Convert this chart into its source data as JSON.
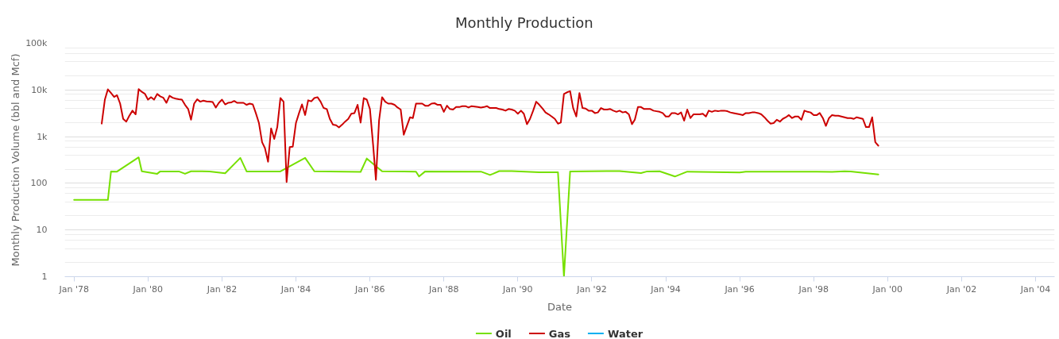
{
  "chart_data": {
    "type": "line",
    "title": "Monthly Production",
    "xlabel": "Date",
    "ylabel": "Monthly Production Volume (bbl and Mcf)",
    "log": true,
    "grid": "y",
    "legend": "bottom",
    "xlim": [
      "1977-10-01",
      "2004-07-07"
    ],
    "xticks": [
      {
        "value": "1978-01",
        "label": "Jan '78"
      },
      {
        "value": "1980-01",
        "label": "Jan '80"
      },
      {
        "value": "1982-01",
        "label": "Jan '82"
      },
      {
        "value": "1984-01",
        "label": "Jan '84"
      },
      {
        "value": "1986-01",
        "label": "Jan '86"
      },
      {
        "value": "1988-01",
        "label": "Jan '88"
      },
      {
        "value": "1990-01",
        "label": "Jan '90"
      },
      {
        "value": "1992-01",
        "label": "Jan '92"
      },
      {
        "value": "1994-01",
        "label": "Jan '94"
      },
      {
        "value": "1996-01",
        "label": "Jan '96"
      },
      {
        "value": "1998-01",
        "label": "Jan '98"
      },
      {
        "value": "2000-01",
        "label": "Jan '00"
      },
      {
        "value": "2002-01",
        "label": "Jan '02"
      },
      {
        "value": "2004-01",
        "label": "Jan '04"
      }
    ],
    "ylim": [
      1,
      100000
    ],
    "yticks": [
      1,
      {
        "value": 2,
        "label": null
      },
      {
        "value": 4,
        "label": null
      },
      {
        "value": 6,
        "label": null
      },
      {
        "value": 8,
        "label": null
      },
      10,
      {
        "value": 20,
        "label": null
      },
      {
        "value": 40,
        "label": null
      },
      {
        "value": 60,
        "label": null
      },
      {
        "value": 80,
        "label": null
      },
      100,
      {
        "value": 200,
        "label": null
      },
      {
        "value": 400,
        "label": null
      },
      {
        "value": 600,
        "label": null
      },
      {
        "value": 800,
        "label": null
      },
      {
        "value": 1000,
        "label": "1k"
      },
      {
        "value": 2000,
        "label": null
      },
      {
        "value": 4000,
        "label": null
      },
      {
        "value": 6000,
        "label": null
      },
      {
        "value": 8000,
        "label": null
      },
      {
        "value": 10000,
        "label": "10k"
      },
      {
        "value": 20000,
        "label": null
      },
      {
        "value": 40000,
        "label": null
      },
      {
        "value": 60000,
        "label": null
      },
      {
        "value": 80000,
        "label": null
      },
      {
        "value": 100000,
        "label": "100k"
      }
    ],
    "series": [
      {
        "name": "Oil",
        "color": "#76e000",
        "x": [
          "1978-01",
          "1978-12",
          "1979-01",
          "1979-03",
          "1979-10",
          "1979-11",
          "1980-04",
          "1980-05",
          "1980-11",
          "1981-01",
          "1981-03",
          "1981-09",
          "1982-02",
          "1982-07",
          "1982-09",
          "1983-08",
          "1984-04",
          "1984-07",
          "1985-10",
          "1985-12",
          "1986-05",
          "1987-04",
          "1987-05",
          "1987-07",
          "1989-01",
          "1989-04",
          "1989-05",
          "1989-07",
          "1989-11",
          "1990-08",
          "1991-02",
          "1991-04",
          "1991-06",
          "1992-10",
          "1993-05",
          "1993-07",
          "1993-11",
          "1994-04",
          "1994-08",
          "1996-01",
          "1996-03",
          "1998-02",
          "1998-07",
          "1998-11",
          "1999-01",
          "1999-10"
        ],
        "values": [
          44,
          44,
          180,
          178,
          360,
          181,
          160,
          180,
          180,
          160,
          181,
          180,
          164,
          350,
          180,
          180,
          350,
          181,
          176,
          340,
          181,
          178,
          140,
          180,
          178,
          151,
          160,
          183,
          183,
          173,
          172,
          1,
          180,
          183,
          166,
          180,
          181,
          140,
          178,
          170,
          178,
          178,
          175,
          181,
          180,
          155
        ]
      },
      {
        "name": "Gas",
        "color": "#cc0000",
        "x": [
          "1978-10",
          "1978-11",
          "1978-12",
          "1979-01",
          "1979-02",
          "1979-03",
          "1979-04",
          "1979-05",
          "1979-06",
          "1979-07",
          "1979-08",
          "1979-09",
          "1979-10",
          "1979-11",
          "1979-12",
          "1980-01",
          "1980-02",
          "1980-03",
          "1980-04",
          "1980-05",
          "1980-06",
          "1980-07",
          "1980-08",
          "1980-09",
          "1980-10",
          "1980-11",
          "1980-12",
          "1981-01",
          "1981-02",
          "1981-03",
          "1981-04",
          "1981-05",
          "1981-06",
          "1981-07",
          "1981-08",
          "1981-09",
          "1981-10",
          "1981-11",
          "1981-12",
          "1982-01",
          "1982-02",
          "1982-03",
          "1982-04",
          "1982-05",
          "1982-06",
          "1982-07",
          "1982-08",
          "1982-09",
          "1982-10",
          "1982-11",
          "1982-12",
          "1983-01",
          "1983-02",
          "1983-03",
          "1983-04",
          "1983-05",
          "1983-06",
          "1983-07",
          "1983-08",
          "1983-09",
          "1983-10",
          "1983-11",
          "1983-12",
          "1984-01",
          "1984-02",
          "1984-03",
          "1984-04",
          "1984-05",
          "1984-06",
          "1984-07",
          "1984-08",
          "1984-09",
          "1984-10",
          "1984-11",
          "1984-12",
          "1985-01",
          "1985-02",
          "1985-03",
          "1985-04",
          "1985-05",
          "1985-06",
          "1985-07",
          "1985-08",
          "1985-09",
          "1985-10",
          "1985-11",
          "1985-12",
          "1986-01",
          "1986-02",
          "1986-03",
          "1986-04",
          "1986-05",
          "1986-06",
          "1986-07",
          "1986-08",
          "1986-09",
          "1986-10",
          "1986-11",
          "1986-12",
          "1987-01",
          "1987-02",
          "1987-03",
          "1987-04",
          "1987-05",
          "1987-06",
          "1987-07",
          "1987-08",
          "1987-09",
          "1987-10",
          "1987-11",
          "1987-12",
          "1988-01",
          "1988-02",
          "1988-03",
          "1988-04",
          "1988-05",
          "1988-06",
          "1988-07",
          "1988-08",
          "1988-09",
          "1988-10",
          "1988-11",
          "1988-12",
          "1989-01",
          "1989-02",
          "1989-03",
          "1989-04",
          "1989-05",
          "1989-06",
          "1989-07",
          "1989-08",
          "1989-09",
          "1989-10",
          "1989-11",
          "1989-12",
          "1990-01",
          "1990-02",
          "1990-03",
          "1990-04",
          "1990-05",
          "1990-06",
          "1990-07",
          "1990-08",
          "1990-09",
          "1990-10",
          "1990-11",
          "1990-12",
          "1991-01",
          "1991-02",
          "1991-03",
          "1991-04",
          "1991-05",
          "1991-06",
          "1991-07",
          "1991-08",
          "1991-09",
          "1991-10",
          "1991-11",
          "1991-12",
          "1992-01",
          "1992-02",
          "1992-03",
          "1992-04",
          "1992-05",
          "1992-06",
          "1992-07",
          "1992-08",
          "1992-09",
          "1992-10",
          "1992-11",
          "1992-12",
          "1993-01",
          "1993-02",
          "1993-03",
          "1993-04",
          "1993-05",
          "1993-06",
          "1993-07",
          "1993-08",
          "1993-09",
          "1993-10",
          "1993-11",
          "1993-12",
          "1994-01",
          "1994-02",
          "1994-03",
          "1994-04",
          "1994-05",
          "1994-06",
          "1994-07",
          "1994-08",
          "1994-09",
          "1994-10",
          "1994-11",
          "1994-12",
          "1995-01",
          "1995-02",
          "1995-03",
          "1995-04",
          "1995-05",
          "1995-06",
          "1995-07",
          "1995-08",
          "1995-09",
          "1995-10",
          "1995-11",
          "1995-12",
          "1996-01",
          "1996-02",
          "1996-03",
          "1996-04",
          "1996-05",
          "1996-06",
          "1996-07",
          "1996-08",
          "1996-09",
          "1996-10",
          "1996-11",
          "1996-12",
          "1997-01",
          "1997-02",
          "1997-03",
          "1997-04",
          "1997-05",
          "1997-06",
          "1997-07",
          "1997-08",
          "1997-09",
          "1997-10",
          "1997-11",
          "1997-12",
          "1998-01",
          "1998-02",
          "1998-03",
          "1998-04",
          "1998-05",
          "1998-06",
          "1998-07",
          "1998-08",
          "1998-09",
          "1998-10",
          "1998-11",
          "1998-12",
          "1999-01",
          "1999-02",
          "1999-03",
          "1999-04",
          "1999-05",
          "1999-06",
          "1999-07",
          "1999-08",
          "1999-09",
          "1999-10"
        ],
        "values": [
          1900,
          6200,
          10300,
          8600,
          7100,
          7700,
          5100,
          2400,
          2100,
          2800,
          3600,
          3000,
          10400,
          9100,
          8300,
          6200,
          7000,
          6200,
          8200,
          7300,
          6800,
          5300,
          7500,
          6800,
          6500,
          6300,
          6200,
          4800,
          3900,
          2300,
          5100,
          6300,
          5600,
          5900,
          5700,
          5600,
          5500,
          4200,
          5300,
          6200,
          4900,
          5300,
          5400,
          5800,
          5300,
          5300,
          5300,
          4800,
          5100,
          4900,
          3200,
          1950,
          760,
          570,
          290,
          1500,
          890,
          1600,
          6700,
          5600,
          107,
          600,
          610,
          1950,
          3200,
          4900,
          2900,
          6000,
          5700,
          6700,
          7000,
          5600,
          4100,
          3900,
          2400,
          1800,
          1750,
          1570,
          1800,
          2100,
          2400,
          3100,
          3200,
          4800,
          2000,
          6700,
          6200,
          3900,
          680,
          119,
          2200,
          7000,
          5600,
          5100,
          5100,
          4800,
          4200,
          3800,
          1100,
          1700,
          2600,
          2500,
          5100,
          5100,
          5100,
          4600,
          4600,
          5100,
          5200,
          4800,
          4800,
          3400,
          4600,
          3900,
          3800,
          4300,
          4300,
          4500,
          4500,
          4200,
          4500,
          4400,
          4300,
          4200,
          4300,
          4500,
          4100,
          4100,
          4100,
          3900,
          3800,
          3600,
          3900,
          3800,
          3600,
          3100,
          3600,
          3100,
          1850,
          2400,
          3600,
          5600,
          4800,
          4000,
          3300,
          3000,
          2700,
          2400,
          1900,
          2000,
          8200,
          8900,
          9400,
          4100,
          2700,
          8600,
          4100,
          4000,
          3600,
          3600,
          3200,
          3300,
          4100,
          3800,
          3800,
          3900,
          3600,
          3400,
          3600,
          3300,
          3400,
          3000,
          1850,
          2300,
          4300,
          4300,
          3900,
          3900,
          3900,
          3600,
          3500,
          3400,
          3200,
          2700,
          2700,
          3200,
          3200,
          3000,
          3300,
          2200,
          3800,
          2500,
          3000,
          3000,
          3000,
          3100,
          2700,
          3600,
          3400,
          3600,
          3500,
          3600,
          3600,
          3500,
          3300,
          3200,
          3100,
          3000,
          2900,
          3200,
          3200,
          3300,
          3300,
          3200,
          3000,
          2600,
          2200,
          1900,
          1950,
          2300,
          2100,
          2400,
          2600,
          2900,
          2500,
          2700,
          2700,
          2300,
          3600,
          3400,
          3300,
          2900,
          2900,
          3200,
          2500,
          1700,
          2500,
          2900,
          2800,
          2800,
          2700,
          2600,
          2500,
          2500,
          2400,
          2600,
          2500,
          2400,
          1600,
          1600,
          2600,
          760,
          640
        ]
      },
      {
        "name": "Water",
        "color": "#00b0f0"
      }
    ]
  }
}
